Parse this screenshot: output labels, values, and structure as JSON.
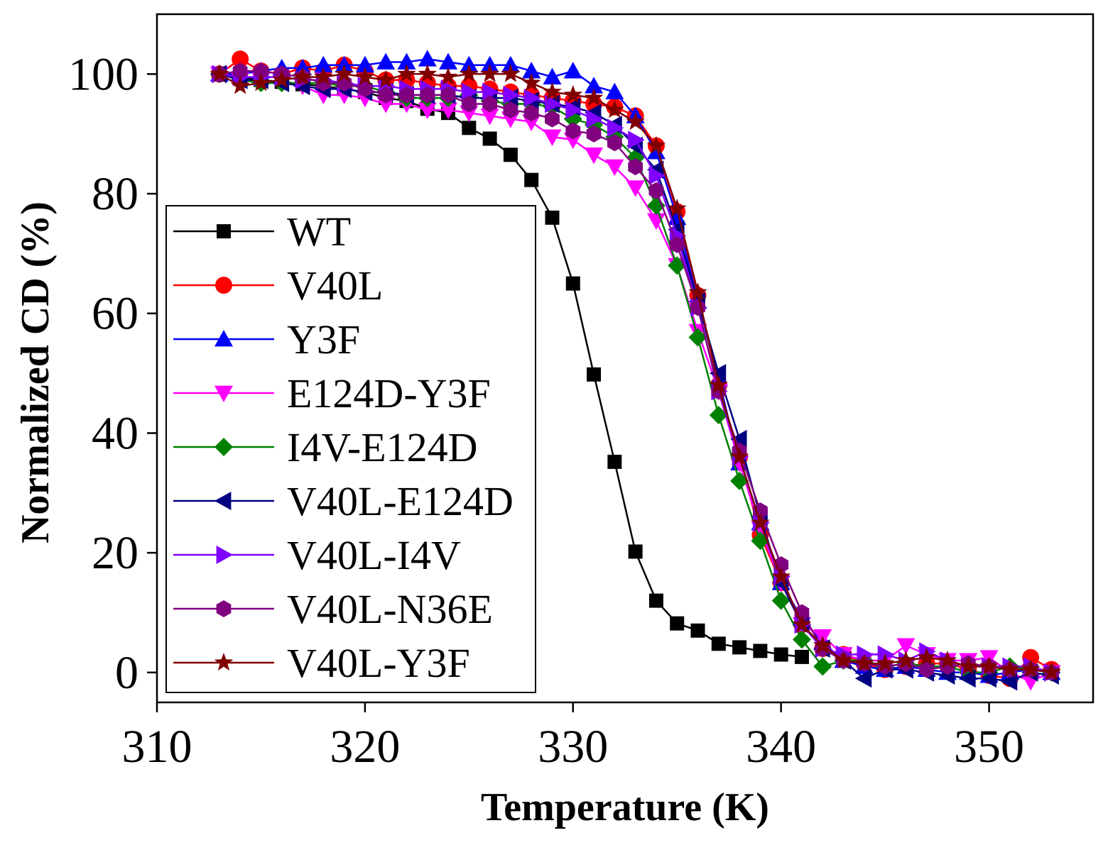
{
  "chart_data": {
    "type": "line",
    "xlabel": "Temperature (K)",
    "ylabel": "Normalized CD (%)",
    "xlim": [
      310,
      355
    ],
    "ylim": [
      -5,
      110
    ],
    "xticks": [
      "310",
      "320",
      "330",
      "340",
      "350"
    ],
    "yticks": [
      "0",
      "20",
      "40",
      "60",
      "80",
      "100"
    ],
    "legend_position": "left",
    "series": [
      {
        "name": "WT",
        "color": "#000000",
        "marker": "square",
        "x": [
          313,
          314,
          315,
          316,
          317,
          318,
          319,
          320,
          321,
          322,
          323,
          324,
          325,
          326,
          327,
          328,
          329,
          330,
          331,
          332,
          333,
          334,
          335,
          336,
          337,
          338,
          339,
          340,
          341
        ],
        "y": [
          100,
          99.5,
          99,
          98.7,
          98.3,
          98,
          97.5,
          97,
          96,
          95.5,
          94.2,
          93.5,
          91,
          89.2,
          86.5,
          82.3,
          76,
          65,
          49.8,
          35.2,
          20.2,
          12,
          8.2,
          7,
          4.8,
          4.2,
          3.6,
          3,
          2.6
        ]
      },
      {
        "name": "V40L",
        "color": "#ff0000",
        "marker": "circle",
        "x": [
          313,
          314,
          315,
          316,
          317,
          318,
          319,
          320,
          321,
          322,
          323,
          324,
          325,
          326,
          327,
          328,
          329,
          330,
          331,
          332,
          333,
          334,
          335,
          336,
          337,
          338,
          339,
          340,
          341,
          342,
          343,
          344,
          345,
          346,
          347,
          348,
          349,
          350,
          351,
          352,
          353
        ],
        "y": [
          100,
          102.5,
          100.5,
          100,
          101,
          100.5,
          101.5,
          100.5,
          99,
          99,
          98.5,
          98,
          98,
          97.5,
          97,
          96.5,
          96,
          95.5,
          95,
          94.5,
          93,
          88,
          77,
          63,
          48,
          36,
          23,
          15,
          8,
          4,
          3,
          1.5,
          0.5,
          1,
          1.5,
          1.5,
          0.5,
          -0.5,
          -1,
          2.5,
          0.5
        ]
      },
      {
        "name": "Y3F",
        "color": "#0000ff",
        "marker": "triangle-up",
        "x": [
          313,
          314,
          315,
          316,
          317,
          318,
          319,
          320,
          321,
          322,
          323,
          324,
          325,
          326,
          327,
          328,
          329,
          330,
          331,
          332,
          333,
          334,
          335,
          336,
          337,
          338,
          339,
          340,
          341,
          342,
          343,
          344,
          345,
          346,
          347,
          348,
          349,
          350,
          351,
          352,
          353
        ],
        "y": [
          100,
          100,
          100.5,
          101,
          101,
          101.5,
          101.5,
          101.5,
          102,
          102,
          102.5,
          102,
          101.5,
          101.5,
          101.5,
          100.5,
          99.5,
          100.5,
          98,
          97,
          93,
          87,
          76,
          62,
          49,
          35,
          25,
          15,
          9,
          5,
          2,
          1,
          0.5,
          1,
          0.5,
          0,
          0,
          -0.5,
          0,
          0.5,
          0
        ]
      },
      {
        "name": "E124D-Y3F",
        "color": "#ff00ff",
        "marker": "triangle-down",
        "x": [
          313,
          314,
          315,
          316,
          317,
          318,
          319,
          320,
          321,
          322,
          323,
          324,
          325,
          326,
          327,
          328,
          329,
          330,
          331,
          332,
          333,
          334,
          335,
          336,
          337,
          338,
          339,
          340,
          341,
          342,
          343,
          344,
          345,
          346,
          347,
          348,
          349,
          350,
          351,
          352,
          353
        ],
        "y": [
          100,
          99,
          99,
          98.5,
          98,
          96.5,
          96.5,
          96,
          95,
          95,
          94,
          94,
          93.5,
          93,
          92.5,
          92,
          89.5,
          89,
          86.5,
          84.5,
          81,
          75.5,
          68,
          57,
          47,
          35,
          24,
          15,
          8,
          6,
          3,
          2,
          2,
          4.5,
          3,
          2,
          2,
          2.5,
          0,
          -1.5,
          0
        ]
      },
      {
        "name": "I4V-E124D",
        "color": "#008000",
        "marker": "diamond",
        "x": [
          313,
          314,
          315,
          316,
          317,
          318,
          319,
          320,
          321,
          322,
          323,
          324,
          325,
          326,
          327,
          328,
          329,
          330,
          331,
          332,
          333,
          334,
          335,
          336,
          337,
          338,
          339,
          340,
          341,
          342,
          343,
          344,
          345,
          346,
          347,
          348,
          349,
          350,
          351,
          352,
          353
        ],
        "y": [
          100,
          99,
          98.5,
          98.5,
          98.5,
          98.5,
          98,
          98,
          97,
          96,
          96,
          96,
          96.5,
          95.5,
          95,
          95,
          94.5,
          92.5,
          91.5,
          89.5,
          86,
          78,
          68,
          56,
          43,
          32,
          22,
          12,
          5.5,
          1,
          2,
          2,
          1,
          1.5,
          1,
          1,
          0,
          0,
          1,
          0.5,
          0
        ]
      },
      {
        "name": "V40L-E124D",
        "color": "#000080",
        "marker": "triangle-left",
        "x": [
          313,
          314,
          315,
          316,
          317,
          318,
          319,
          320,
          321,
          322,
          323,
          324,
          325,
          326,
          327,
          328,
          329,
          330,
          331,
          332,
          333,
          334,
          335,
          336,
          337,
          338,
          339,
          340,
          341,
          342,
          343,
          344,
          345,
          346,
          347,
          348,
          349,
          350,
          351,
          352,
          353
        ],
        "y": [
          100,
          99,
          99,
          98.5,
          98,
          97.5,
          97.5,
          97,
          97,
          96.5,
          96.5,
          96.5,
          96,
          96,
          96,
          95.5,
          95,
          94.5,
          93.5,
          91.5,
          88,
          84,
          74,
          62,
          50,
          39,
          26,
          15,
          8,
          4,
          2,
          -1,
          0.5,
          0.5,
          0,
          -0.5,
          -1,
          -1,
          -1.5,
          0,
          -0.5
        ]
      },
      {
        "name": "V40L-I4V",
        "color": "#8000ff",
        "marker": "triangle-right",
        "x": [
          313,
          314,
          315,
          316,
          317,
          318,
          319,
          320,
          321,
          322,
          323,
          324,
          325,
          326,
          327,
          328,
          329,
          330,
          331,
          332,
          333,
          334,
          335,
          336,
          337,
          338,
          339,
          340,
          341,
          342,
          343,
          344,
          345,
          346,
          347,
          348,
          349,
          350,
          351,
          352,
          353
        ],
        "y": [
          100,
          99.5,
          99.5,
          99.5,
          99,
          99,
          98.5,
          98,
          98,
          97.5,
          97.5,
          97.5,
          97,
          97,
          96.5,
          96,
          95,
          94,
          92.5,
          91,
          89,
          83,
          73,
          61,
          47,
          36,
          25,
          16,
          8,
          4,
          3,
          3,
          3,
          2,
          3.5,
          2,
          1,
          1,
          1,
          1,
          0
        ]
      },
      {
        "name": "V40L-N36E",
        "color": "#800080",
        "marker": "hexagon",
        "x": [
          313,
          314,
          315,
          316,
          317,
          318,
          319,
          320,
          321,
          322,
          323,
          324,
          325,
          326,
          327,
          328,
          329,
          330,
          331,
          332,
          333,
          334,
          335,
          336,
          337,
          338,
          339,
          340,
          341,
          342,
          343,
          344,
          345,
          346,
          347,
          348,
          349,
          350,
          351,
          352,
          353
        ],
        "y": [
          100,
          100.5,
          100.5,
          100,
          99.5,
          98.5,
          98.5,
          97.5,
          96.5,
          96.5,
          96.5,
          96.5,
          95,
          95,
          94,
          93.5,
          92.5,
          90.5,
          90,
          88.5,
          84.5,
          80.5,
          71.5,
          61,
          47,
          37,
          27,
          18,
          10,
          4,
          2,
          1.5,
          1,
          1.5,
          0.5,
          1,
          1.5,
          1,
          0.5,
          0.5,
          0
        ]
      },
      {
        "name": "V40L-Y3F",
        "color": "#800000",
        "marker": "star",
        "x": [
          313,
          314,
          315,
          316,
          317,
          318,
          319,
          320,
          321,
          322,
          323,
          324,
          325,
          326,
          327,
          328,
          329,
          330,
          331,
          332,
          333,
          334,
          335,
          336,
          337,
          338,
          339,
          340,
          341,
          342,
          343,
          344,
          345,
          346,
          347,
          348,
          349,
          350,
          351,
          352,
          353
        ],
        "y": [
          100,
          98,
          98.5,
          99,
          99.5,
          99.5,
          100,
          99.5,
          99,
          100,
          100,
          99.5,
          100,
          100,
          100,
          98.5,
          97,
          96.5,
          96,
          94,
          92,
          88,
          77.5,
          63.5,
          48,
          36,
          25,
          16,
          8,
          4.5,
          2,
          1.5,
          1.5,
          2,
          2.5,
          2,
          1,
          1,
          0.5,
          0.5,
          0
        ]
      }
    ]
  }
}
